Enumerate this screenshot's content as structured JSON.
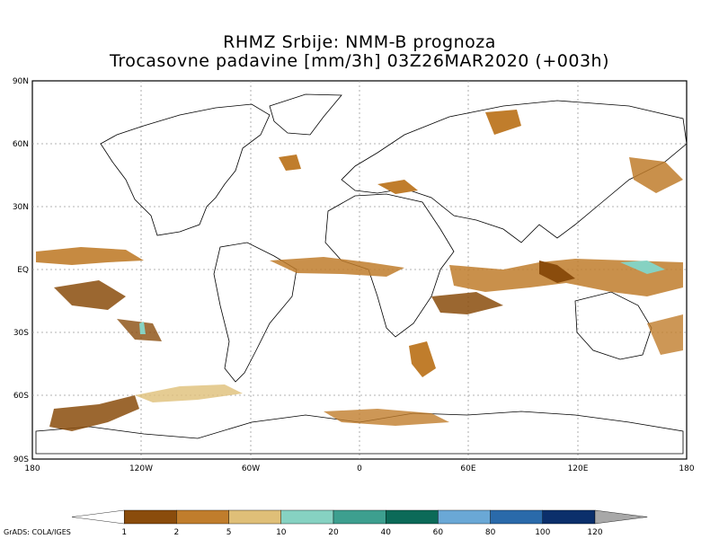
{
  "title": {
    "line1": "RHMZ Srbije: NMM-B prognoza",
    "line2": "Trocasovne padavine [mm/3h] 03Z26MAR2020 (+003h)"
  },
  "axes": {
    "lat_labels": [
      "90N",
      "60N",
      "30N",
      "EQ",
      "30S",
      "60S",
      "90S"
    ],
    "lon_labels": [
      "180",
      "120W",
      "60W",
      "0",
      "60E",
      "120E",
      "180"
    ]
  },
  "colorbar": {
    "levels": [
      "1",
      "2",
      "5",
      "10",
      "20",
      "40",
      "60",
      "80",
      "100",
      "120"
    ],
    "colors": [
      "#ffffff",
      "#8a4c0c",
      "#c07d2c",
      "#dfbf78",
      "#86d2c2",
      "#3d9f8f",
      "#0c6a58",
      "#6aa8d6",
      "#2a6aaa",
      "#0b2f6b",
      "#a8a8a8"
    ]
  },
  "footer": "GrADS: COLA/IGES"
}
